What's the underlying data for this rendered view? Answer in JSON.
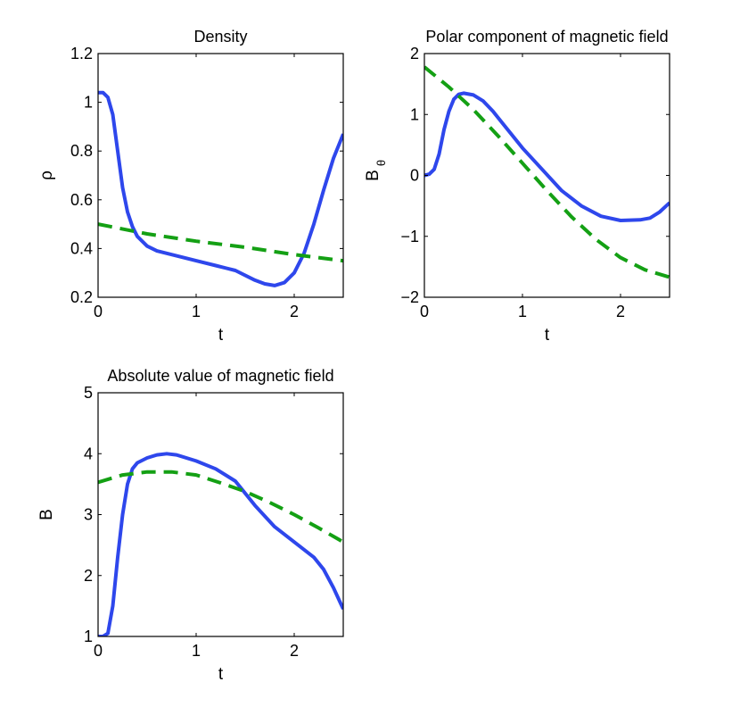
{
  "colors": {
    "line_solid": "#2e47ec",
    "line_dashed": "#14a014",
    "axes": "#000000"
  },
  "chart_data": [
    {
      "type": "line",
      "title": "Density",
      "xlabel": "t",
      "ylabel": "ρ",
      "ylabel_sub": "",
      "xlim": [
        0,
        2.5
      ],
      "ylim": [
        0.2,
        1.2
      ],
      "xticks": [
        0,
        1,
        2
      ],
      "xtick_labels": [
        "0",
        "1",
        "2"
      ],
      "yticks": [
        0.2,
        0.4,
        0.6,
        0.8,
        1.0,
        1.2
      ],
      "ytick_labels": [
        "0.2",
        "0.4",
        "0.6",
        "0.8",
        "1",
        "1.2"
      ],
      "series": [
        {
          "name": "solid",
          "style": "solid",
          "x": [
            0,
            0.05,
            0.1,
            0.15,
            0.2,
            0.25,
            0.3,
            0.35,
            0.4,
            0.5,
            0.6,
            0.8,
            1.0,
            1.2,
            1.4,
            1.6,
            1.7,
            1.8,
            1.9,
            2.0,
            2.1,
            2.2,
            2.3,
            2.4,
            2.5
          ],
          "y": [
            1.04,
            1.04,
            1.02,
            0.95,
            0.8,
            0.65,
            0.55,
            0.49,
            0.45,
            0.41,
            0.39,
            0.37,
            0.35,
            0.33,
            0.31,
            0.27,
            0.255,
            0.248,
            0.26,
            0.3,
            0.38,
            0.5,
            0.64,
            0.77,
            0.87
          ]
        },
        {
          "name": "dashed",
          "style": "dashed",
          "x": [
            0,
            0.5,
            1.0,
            1.5,
            2.0,
            2.5
          ],
          "y": [
            0.5,
            0.46,
            0.43,
            0.405,
            0.375,
            0.35
          ]
        }
      ]
    },
    {
      "type": "line",
      "title": "Polar component of magnetic field",
      "xlabel": "t",
      "ylabel": "B",
      "ylabel_sub": "θ",
      "xlim": [
        0,
        2.5
      ],
      "ylim": [
        -2,
        2
      ],
      "xticks": [
        0,
        1,
        2
      ],
      "xtick_labels": [
        "0",
        "1",
        "2"
      ],
      "yticks": [
        -2,
        -1,
        0,
        1,
        2
      ],
      "ytick_labels": [
        "−2",
        "−1",
        "0",
        "1",
        "2"
      ],
      "series": [
        {
          "name": "solid",
          "style": "solid",
          "x": [
            0,
            0.05,
            0.1,
            0.15,
            0.2,
            0.25,
            0.3,
            0.35,
            0.4,
            0.5,
            0.6,
            0.7,
            0.8,
            1.0,
            1.2,
            1.4,
            1.6,
            1.8,
            2.0,
            2.2,
            2.3,
            2.4,
            2.5
          ],
          "y": [
            0,
            0.02,
            0.1,
            0.35,
            0.75,
            1.05,
            1.25,
            1.33,
            1.35,
            1.32,
            1.22,
            1.05,
            0.85,
            0.45,
            0.1,
            -0.25,
            -0.5,
            -0.67,
            -0.74,
            -0.73,
            -0.7,
            -0.6,
            -0.45
          ]
        },
        {
          "name": "dashed",
          "style": "dashed",
          "x": [
            0,
            0.25,
            0.5,
            0.75,
            1.0,
            1.25,
            1.5,
            1.75,
            2.0,
            2.25,
            2.5
          ],
          "y": [
            1.78,
            1.45,
            1.08,
            0.65,
            0.2,
            -0.25,
            -0.68,
            -1.05,
            -1.35,
            -1.55,
            -1.67
          ]
        }
      ]
    },
    {
      "type": "line",
      "title": "Absolute value of magnetic field",
      "xlabel": "t",
      "ylabel": "B",
      "ylabel_sub": "",
      "xlim": [
        0,
        2.5
      ],
      "ylim": [
        1,
        5
      ],
      "xticks": [
        0,
        1,
        2
      ],
      "xtick_labels": [
        "0",
        "1",
        "2"
      ],
      "yticks": [
        1,
        2,
        3,
        4,
        5
      ],
      "ytick_labels": [
        "1",
        "2",
        "3",
        "4",
        "5"
      ],
      "series": [
        {
          "name": "solid",
          "style": "solid",
          "x": [
            0,
            0.05,
            0.1,
            0.15,
            0.2,
            0.25,
            0.3,
            0.35,
            0.4,
            0.5,
            0.6,
            0.7,
            0.8,
            1.0,
            1.2,
            1.4,
            1.5,
            1.6,
            1.8,
            2.0,
            2.2,
            2.3,
            2.4,
            2.5
          ],
          "y": [
            1.0,
            1.0,
            1.05,
            1.5,
            2.3,
            3.0,
            3.5,
            3.75,
            3.85,
            3.93,
            3.98,
            4.0,
            3.98,
            3.88,
            3.75,
            3.55,
            3.35,
            3.15,
            2.8,
            2.55,
            2.3,
            2.1,
            1.8,
            1.45
          ]
        },
        {
          "name": "dashed",
          "style": "dashed",
          "x": [
            0,
            0.25,
            0.5,
            0.75,
            1.0,
            1.25,
            1.5,
            1.75,
            2.0,
            2.25,
            2.5
          ],
          "y": [
            3.53,
            3.65,
            3.7,
            3.7,
            3.65,
            3.52,
            3.38,
            3.2,
            3.0,
            2.78,
            2.55
          ]
        }
      ]
    }
  ]
}
